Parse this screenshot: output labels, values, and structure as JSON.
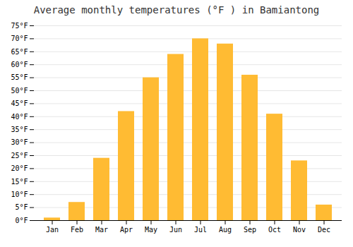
{
  "chart_data": {
    "type": "bar",
    "title": "Average monthly temperatures (°F ) in Bamiantong",
    "categories": [
      "Jan",
      "Feb",
      "Mar",
      "Apr",
      "May",
      "Jun",
      "Jul",
      "Aug",
      "Sep",
      "Oct",
      "Nov",
      "Dec"
    ],
    "values": [
      1,
      7,
      24,
      42,
      55,
      64,
      70,
      68,
      56,
      41,
      23,
      6
    ],
    "color": "#FFBB33",
    "ylim": [
      0,
      75
    ],
    "yticks": [
      {
        "value": 0,
        "label": "0°F"
      },
      {
        "value": 5,
        "label": "5°F"
      },
      {
        "value": 10,
        "label": "10°F"
      },
      {
        "value": 15,
        "label": "15°F"
      },
      {
        "value": 20,
        "label": "20°F"
      },
      {
        "value": 25,
        "label": "25°F"
      },
      {
        "value": 30,
        "label": "30°F"
      },
      {
        "value": 35,
        "label": "35°F"
      },
      {
        "value": 40,
        "label": "40°F"
      },
      {
        "value": 45,
        "label": "45°F"
      },
      {
        "value": 50,
        "label": "50°F"
      },
      {
        "value": 55,
        "label": "55°F"
      },
      {
        "value": 60,
        "label": "60°F"
      },
      {
        "value": 65,
        "label": "65°F"
      },
      {
        "value": 70,
        "label": "70°F"
      },
      {
        "value": 75,
        "label": "75°F"
      }
    ],
    "grid": true
  }
}
